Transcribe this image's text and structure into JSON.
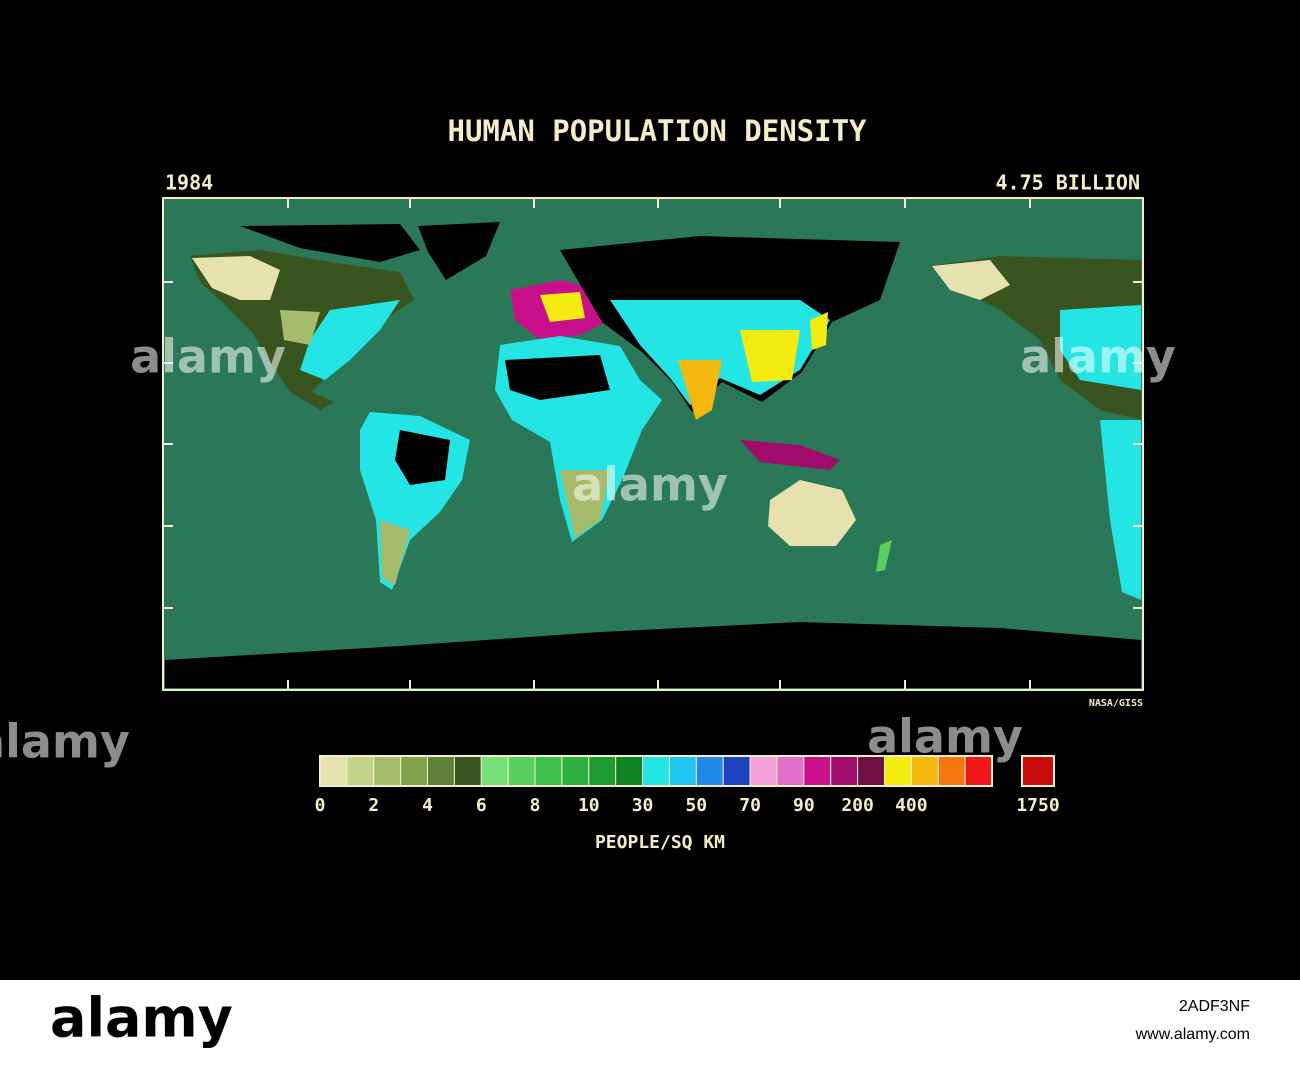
{
  "header": {
    "title": "HUMAN POPULATION DENSITY",
    "year": "1984",
    "population": "4.75 BILLION"
  },
  "map": {
    "credit": "NASA/GISS"
  },
  "legend": {
    "colors": [
      "#e6e2b0",
      "#c4d48c",
      "#a4bc6c",
      "#84a24c",
      "#5e8038",
      "#3a5420",
      "#78e078",
      "#58d060",
      "#40c04c",
      "#2cb040",
      "#1c9c30",
      "#108424",
      "#24e4e4",
      "#20c4f0",
      "#2088e8",
      "#1c44c0",
      "#f4a0d8",
      "#e070c8",
      "#c8108c",
      "#a00c6c",
      "#701040",
      "#f4ec10",
      "#f4b810",
      "#f47810",
      "#f01818"
    ],
    "labels": [
      "0",
      "2",
      "4",
      "6",
      "8",
      "10",
      "30",
      "50",
      "70",
      "90",
      "200",
      "400"
    ],
    "max_color": "#c80c0c",
    "max_label": "1750",
    "unit": "PEOPLE/SQ KM"
  },
  "watermark": {
    "brand": "alamy",
    "image_id": "2ADF3NF",
    "site": "www.alamy.com"
  }
}
